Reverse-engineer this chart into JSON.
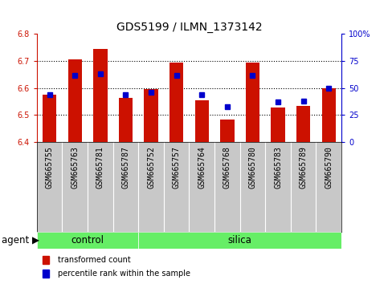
{
  "title": "GDS5199 / ILMN_1373142",
  "samples": [
    "GSM665755",
    "GSM665763",
    "GSM665781",
    "GSM665787",
    "GSM665752",
    "GSM665757",
    "GSM665764",
    "GSM665768",
    "GSM665780",
    "GSM665783",
    "GSM665789",
    "GSM665790"
  ],
  "red_values": [
    6.575,
    6.705,
    6.745,
    6.565,
    6.595,
    6.695,
    6.555,
    6.482,
    6.695,
    6.528,
    6.535,
    6.6
  ],
  "blue_percentiles": [
    44,
    62,
    63,
    44,
    46,
    62,
    44,
    33,
    62,
    37,
    38,
    50
  ],
  "ylim_left": [
    6.4,
    6.8
  ],
  "ylim_right": [
    0,
    100
  ],
  "yticks_left": [
    6.4,
    6.5,
    6.6,
    6.7,
    6.8
  ],
  "yticks_right": [
    0,
    25,
    50,
    75,
    100
  ],
  "bar_color": "#cc1100",
  "dot_color": "#0000cc",
  "bar_bottom": 6.4,
  "bar_width": 0.55,
  "left_axis_color": "#cc1100",
  "right_axis_color": "#0000cc",
  "control_color": "#66ee66",
  "silica_color": "#66ee66",
  "control_indices": [
    0,
    1,
    2,
    3
  ],
  "silica_indices": [
    4,
    5,
    6,
    7,
    8,
    9,
    10,
    11
  ],
  "legend_items": [
    "transformed count",
    "percentile rank within the sample"
  ],
  "title_fontsize": 10,
  "tick_fontsize": 7,
  "label_fontsize": 8.5,
  "xtick_bg_color": "#c8c8c8",
  "agent_arrow": "▶"
}
